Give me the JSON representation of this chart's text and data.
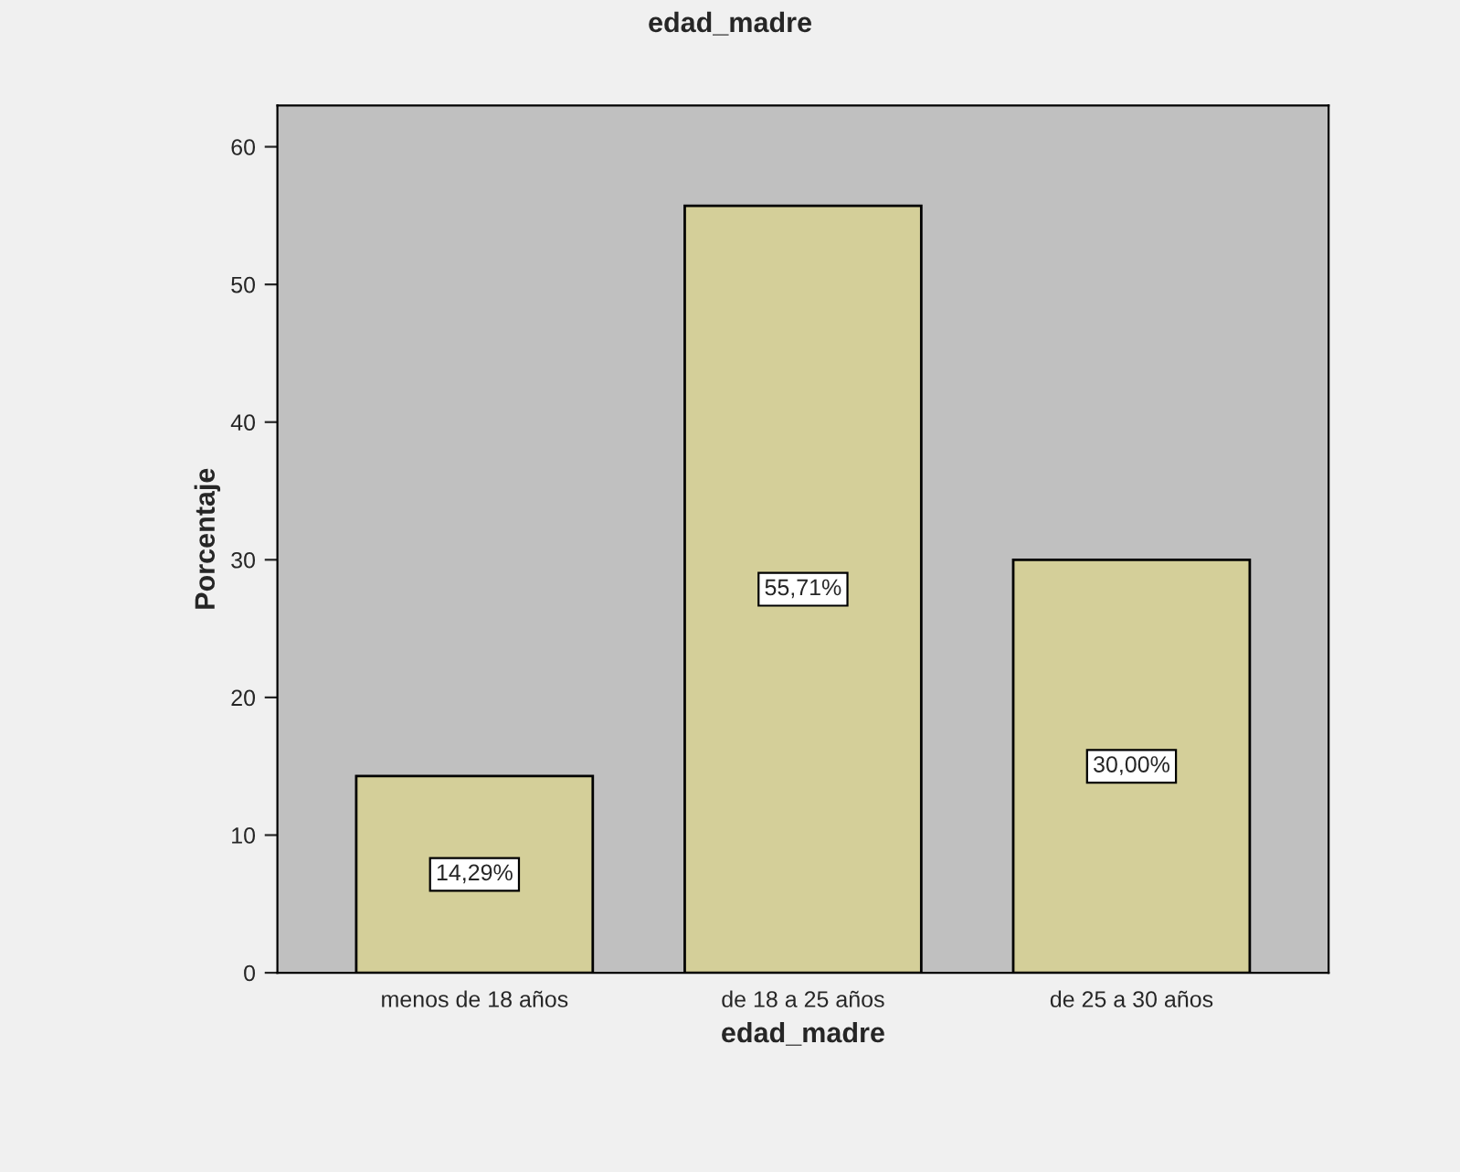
{
  "chart_data": {
    "type": "bar",
    "title": "edad_madre",
    "xlabel": "edad_madre",
    "ylabel": "Porcentaje",
    "categories": [
      "menos de 18 años",
      "de 18 a 25 años",
      "de 25 a 30 años"
    ],
    "values": [
      14.29,
      55.71,
      30.0
    ],
    "value_labels": [
      "14,29%",
      "55,71%",
      "30,00%"
    ],
    "color": "#d4cf99",
    "ylim": [
      0,
      63
    ],
    "yticks": [
      0,
      10,
      20,
      30,
      40,
      50,
      60
    ],
    "grid": false
  }
}
